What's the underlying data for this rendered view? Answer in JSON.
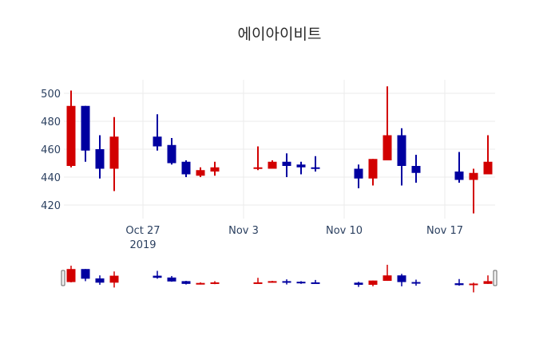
{
  "chart_data": {
    "type": "candlestick",
    "title": "에이아이비트",
    "xlabel": "",
    "ylabel": "",
    "ylim": [
      410,
      512
    ],
    "yticks": [
      420,
      440,
      460,
      480,
      500
    ],
    "xticks": [
      {
        "date": "2019-10-27",
        "label": "Oct 27",
        "sublabel": "2019"
      },
      {
        "date": "2019-11-03",
        "label": "Nov 3"
      },
      {
        "date": "2019-11-10",
        "label": "Nov 10"
      },
      {
        "date": "2019-11-17",
        "label": "Nov 17"
      }
    ],
    "xrange": [
      "2019-10-21T12:00",
      "2019-11-20T12:00"
    ],
    "grid": true,
    "rangeslider": true,
    "increasing_color": "#d20000",
    "decreasing_color": "#0000a0",
    "candles": [
      {
        "date": "2019-10-22",
        "open": 448,
        "high": 502,
        "low": 447,
        "close": 491
      },
      {
        "date": "2019-10-23",
        "open": 491,
        "high": 491,
        "low": 451,
        "close": 459
      },
      {
        "date": "2019-10-24",
        "open": 460,
        "high": 470,
        "low": 439,
        "close": 446
      },
      {
        "date": "2019-10-25",
        "open": 446,
        "high": 483,
        "low": 430,
        "close": 469
      },
      {
        "date": "2019-10-28",
        "open": 469,
        "high": 485,
        "low": 459,
        "close": 462
      },
      {
        "date": "2019-10-29",
        "open": 463,
        "high": 468,
        "low": 449,
        "close": 450
      },
      {
        "date": "2019-10-30",
        "open": 451,
        "high": 452,
        "low": 440,
        "close": 442
      },
      {
        "date": "2019-10-31",
        "open": 441,
        "high": 447,
        "low": 440,
        "close": 445
      },
      {
        "date": "2019-11-01",
        "open": 444,
        "high": 451,
        "low": 441,
        "close": 447
      },
      {
        "date": "2019-11-04",
        "open": 446,
        "high": 462,
        "low": 445,
        "close": 447
      },
      {
        "date": "2019-11-05",
        "open": 446,
        "high": 452,
        "low": 446,
        "close": 451
      },
      {
        "date": "2019-11-06",
        "open": 451,
        "high": 457,
        "low": 440,
        "close": 448
      },
      {
        "date": "2019-11-07",
        "open": 449,
        "high": 451,
        "low": 442,
        "close": 447
      },
      {
        "date": "2019-11-08",
        "open": 447,
        "high": 455,
        "low": 444,
        "close": 446
      },
      {
        "date": "2019-11-11",
        "open": 446,
        "high": 449,
        "low": 432,
        "close": 439
      },
      {
        "date": "2019-11-12",
        "open": 439,
        "high": 453,
        "low": 434,
        "close": 453
      },
      {
        "date": "2019-11-13",
        "open": 452,
        "high": 505,
        "low": 452,
        "close": 470
      },
      {
        "date": "2019-11-14",
        "open": 470,
        "high": 475,
        "low": 434,
        "close": 448
      },
      {
        "date": "2019-11-15",
        "open": 448,
        "high": 456,
        "low": 436,
        "close": 443
      },
      {
        "date": "2019-11-18",
        "open": 444,
        "high": 458,
        "low": 436,
        "close": 438
      },
      {
        "date": "2019-11-19",
        "open": 438,
        "high": 446,
        "low": 414,
        "close": 443
      },
      {
        "date": "2019-11-20",
        "open": 442,
        "high": 470,
        "low": 442,
        "close": 451
      }
    ]
  }
}
